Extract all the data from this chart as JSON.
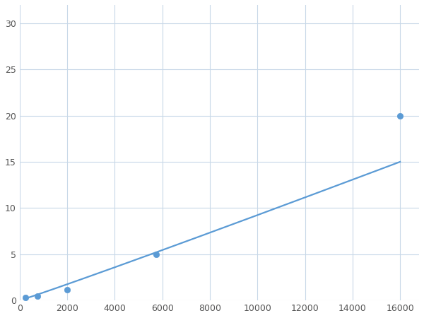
{
  "x_data": [
    250,
    750,
    2000,
    5750,
    16000
  ],
  "y_data": [
    0.3,
    0.5,
    1.2,
    5.0,
    20.0
  ],
  "line_color": "#5b9bd5",
  "marker_color": "#5b9bd5",
  "marker_size": 6,
  "line_width": 1.6,
  "xlim": [
    0,
    16800
  ],
  "ylim": [
    0,
    32
  ],
  "xticks": [
    0,
    2000,
    4000,
    6000,
    8000,
    10000,
    12000,
    14000,
    16000
  ],
  "yticks": [
    0,
    5,
    10,
    15,
    20,
    25,
    30
  ],
  "grid_color": "#c8d8e8",
  "background_color": "#ffffff",
  "fig_width": 6.0,
  "fig_height": 4.5,
  "dpi": 100
}
